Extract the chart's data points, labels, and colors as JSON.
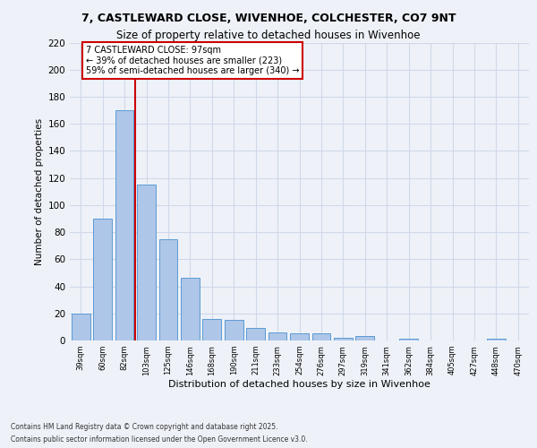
{
  "title1": "7, CASTLEWARD CLOSE, WIVENHOE, COLCHESTER, CO7 9NT",
  "title2": "Size of property relative to detached houses in Wivenhoe",
  "xlabel": "Distribution of detached houses by size in Wivenhoe",
  "ylabel": "Number of detached properties",
  "categories": [
    "39sqm",
    "60sqm",
    "82sqm",
    "103sqm",
    "125sqm",
    "146sqm",
    "168sqm",
    "190sqm",
    "211sqm",
    "233sqm",
    "254sqm",
    "276sqm",
    "297sqm",
    "319sqm",
    "341sqm",
    "362sqm",
    "384sqm",
    "405sqm",
    "427sqm",
    "448sqm",
    "470sqm"
  ],
  "values": [
    20,
    90,
    170,
    115,
    75,
    46,
    16,
    15,
    9,
    6,
    5,
    5,
    2,
    3,
    0,
    1,
    0,
    0,
    0,
    1,
    0
  ],
  "bar_color": "#aec6e8",
  "bar_edge_color": "#5b9bd5",
  "grid_color": "#d0d8e8",
  "background_color": "#eef2f8",
  "vline_color": "#cc0000",
  "annotation_line1": "7 CASTLEWARD CLOSE: 97sqm",
  "annotation_line2": "← 39% of detached houses are smaller (223)",
  "annotation_line3": "59% of semi-detached houses are larger (340) →",
  "annotation_box_color": "#ffffff",
  "annotation_box_edge": "#cc0000",
  "ylim_max": 220,
  "yticks": [
    0,
    20,
    40,
    60,
    80,
    100,
    120,
    140,
    160,
    180,
    200,
    220
  ],
  "footnote1": "Contains HM Land Registry data © Crown copyright and database right 2025.",
  "footnote2": "Contains public sector information licensed under the Open Government Licence v3.0."
}
